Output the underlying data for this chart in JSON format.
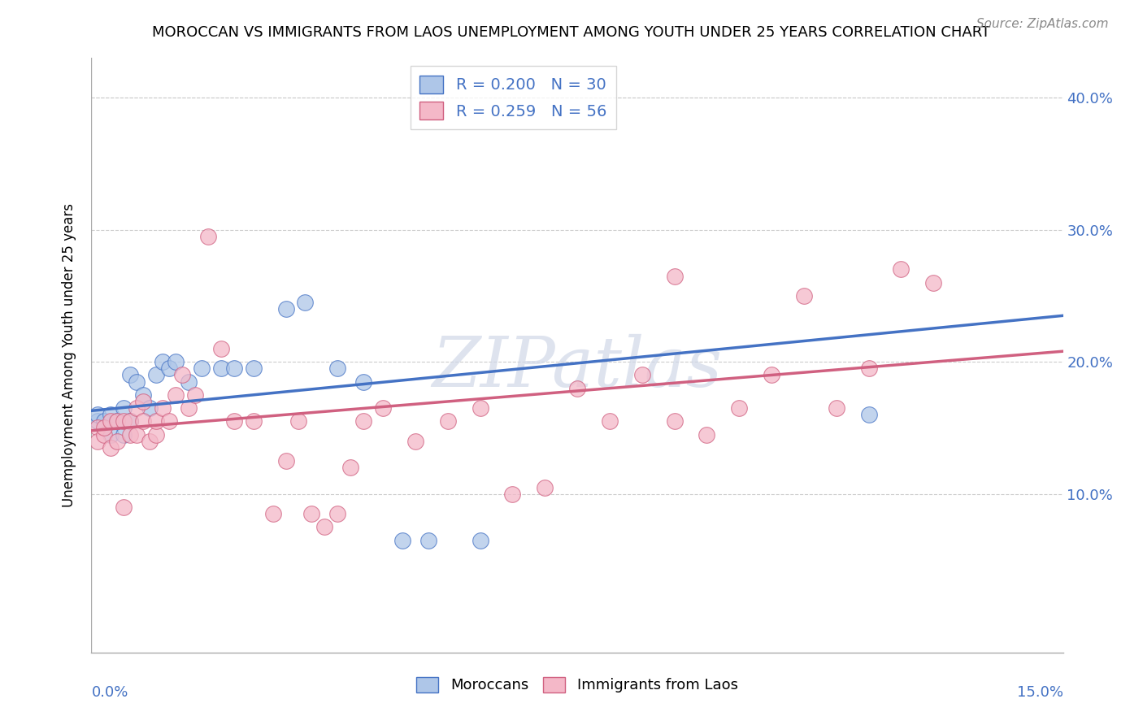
{
  "title": "MOROCCAN VS IMMIGRANTS FROM LAOS UNEMPLOYMENT AMONG YOUTH UNDER 25 YEARS CORRELATION CHART",
  "source": "Source: ZipAtlas.com",
  "ylabel": "Unemployment Among Youth under 25 years",
  "xlim": [
    0.0,
    0.15
  ],
  "ylim": [
    -0.02,
    0.43
  ],
  "color_moroccan": "#aec6e8",
  "color_laos": "#f4b8c8",
  "color_line_moroccan": "#4472c4",
  "color_line_laos": "#d06080",
  "watermark": "ZIPatlas",
  "moroccan_x": [
    0.001,
    0.001,
    0.002,
    0.003,
    0.003,
    0.004,
    0.005,
    0.005,
    0.006,
    0.006,
    0.007,
    0.008,
    0.009,
    0.01,
    0.011,
    0.012,
    0.013,
    0.015,
    0.017,
    0.02,
    0.022,
    0.025,
    0.03,
    0.033,
    0.038,
    0.042,
    0.048,
    0.052,
    0.06,
    0.12
  ],
  "moroccan_y": [
    0.155,
    0.16,
    0.155,
    0.145,
    0.16,
    0.155,
    0.145,
    0.165,
    0.155,
    0.19,
    0.185,
    0.175,
    0.165,
    0.19,
    0.2,
    0.195,
    0.2,
    0.185,
    0.195,
    0.195,
    0.195,
    0.195,
    0.24,
    0.245,
    0.195,
    0.185,
    0.065,
    0.065,
    0.065,
    0.16
  ],
  "laos_x": [
    0.001,
    0.001,
    0.002,
    0.002,
    0.003,
    0.003,
    0.004,
    0.004,
    0.005,
    0.005,
    0.006,
    0.006,
    0.007,
    0.007,
    0.008,
    0.008,
    0.009,
    0.01,
    0.01,
    0.011,
    0.012,
    0.013,
    0.014,
    0.015,
    0.016,
    0.018,
    0.02,
    0.022,
    0.025,
    0.028,
    0.03,
    0.032,
    0.034,
    0.036,
    0.038,
    0.04,
    0.042,
    0.045,
    0.05,
    0.055,
    0.06,
    0.065,
    0.07,
    0.075,
    0.08,
    0.085,
    0.09,
    0.095,
    0.1,
    0.105,
    0.11,
    0.115,
    0.12,
    0.125,
    0.13,
    0.09
  ],
  "laos_y": [
    0.15,
    0.14,
    0.145,
    0.15,
    0.135,
    0.155,
    0.14,
    0.155,
    0.09,
    0.155,
    0.155,
    0.145,
    0.165,
    0.145,
    0.155,
    0.17,
    0.14,
    0.145,
    0.155,
    0.165,
    0.155,
    0.175,
    0.19,
    0.165,
    0.175,
    0.295,
    0.21,
    0.155,
    0.155,
    0.085,
    0.125,
    0.155,
    0.085,
    0.075,
    0.085,
    0.12,
    0.155,
    0.165,
    0.14,
    0.155,
    0.165,
    0.1,
    0.105,
    0.18,
    0.155,
    0.19,
    0.265,
    0.145,
    0.165,
    0.19,
    0.25,
    0.165,
    0.195,
    0.27,
    0.26,
    0.155
  ],
  "moroccan_line_x": [
    0.0,
    0.15
  ],
  "moroccan_line_y": [
    0.163,
    0.235
  ],
  "laos_line_x": [
    0.0,
    0.15
  ],
  "laos_line_y": [
    0.148,
    0.208
  ]
}
